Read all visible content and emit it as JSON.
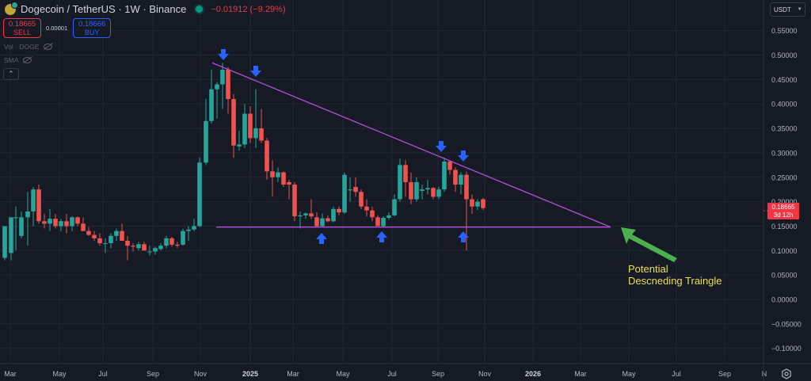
{
  "header": {
    "symbol_title": "Dogecoin / TetherUS · 1W · Binance",
    "change": "−0.01912 (−9.29%)",
    "coin_icon": "dogecoin-icon",
    "live_icon": "market-open-dot"
  },
  "trade": {
    "sell_price": "0.18665",
    "sell_label": "SELL",
    "spread": "0.00001",
    "buy_price": "0.18666",
    "buy_label": "BUY"
  },
  "indicators": [
    {
      "label": "Vol · DOGE",
      "icon": "eye-off-icon"
    },
    {
      "label": "SMA",
      "icon": "eye-off-icon"
    }
  ],
  "collapse_icon": "chevron-up-icon",
  "price_axis": {
    "currency": "USDT",
    "ticks": [
      "0.55000",
      "0.50000",
      "0.45000",
      "0.40000",
      "0.35000",
      "0.30000",
      "0.25000",
      "0.20000",
      "0.15000",
      "0.10000",
      "0.05000",
      "0.00000",
      "−0.05000",
      "−0.10000"
    ],
    "current_price": "0.18665",
    "countdown": "3d 12h"
  },
  "time_axis": {
    "ticks": [
      "Mar",
      "May",
      "Jul",
      "Sep",
      "Nov",
      "2025",
      "Mar",
      "May",
      "Jul",
      "Sep",
      "Nov",
      "2026",
      "Mar",
      "May",
      "Jul",
      "Sep",
      "N"
    ],
    "settings_icon": "gear-icon"
  },
  "annotation": {
    "line1": "Potential",
    "line2": "Descneding Traingle"
  },
  "colors": {
    "background": "#161a25",
    "grid": "#232734",
    "up": "#26a69a",
    "down": "#ef5350",
    "trendline": "#b44ed8",
    "marker_arrow": "#2962ff",
    "annotation_arrow": "#4caf50",
    "annotation_text": "#e8e052"
  },
  "chart_data": {
    "type": "candlestick",
    "title": "Dogecoin / TetherUS · 1W · Binance",
    "xlabel": "",
    "ylabel": "USDT",
    "ylim": [
      -0.11,
      0.57
    ],
    "grid": true,
    "timeframe": "1W",
    "last_price": 0.18665,
    "change": -0.01912,
    "change_pct": -9.29,
    "candles": [
      {
        "x": 6,
        "o": 0.085,
        "h": 0.15,
        "l": 0.08,
        "c": 0.15
      },
      {
        "x": 14,
        "o": 0.095,
        "h": 0.168,
        "l": 0.08,
        "c": 0.168
      },
      {
        "x": 20,
        "o": 0.168,
        "h": 0.19,
        "l": 0.1,
        "c": 0.168
      },
      {
        "x": 27,
        "o": 0.13,
        "h": 0.18,
        "l": 0.125,
        "c": 0.168
      },
      {
        "x": 35,
        "o": 0.168,
        "h": 0.22,
        "l": 0.11,
        "c": 0.18
      },
      {
        "x": 42,
        "o": 0.18,
        "h": 0.23,
        "l": 0.15,
        "c": 0.225
      },
      {
        "x": 49,
        "o": 0.225,
        "h": 0.235,
        "l": 0.155,
        "c": 0.16
      },
      {
        "x": 56,
        "o": 0.16,
        "h": 0.175,
        "l": 0.145,
        "c": 0.155
      },
      {
        "x": 63,
        "o": 0.155,
        "h": 0.185,
        "l": 0.14,
        "c": 0.165
      },
      {
        "x": 70,
        "o": 0.165,
        "h": 0.175,
        "l": 0.145,
        "c": 0.15
      },
      {
        "x": 77,
        "o": 0.15,
        "h": 0.165,
        "l": 0.14,
        "c": 0.16
      },
      {
        "x": 84,
        "o": 0.16,
        "h": 0.175,
        "l": 0.135,
        "c": 0.15
      },
      {
        "x": 91,
        "o": 0.15,
        "h": 0.17,
        "l": 0.14,
        "c": 0.168
      },
      {
        "x": 98,
        "o": 0.168,
        "h": 0.17,
        "l": 0.15,
        "c": 0.155
      },
      {
        "x": 105,
        "o": 0.155,
        "h": 0.168,
        "l": 0.14,
        "c": 0.14
      },
      {
        "x": 112,
        "o": 0.14,
        "h": 0.148,
        "l": 0.13,
        "c": 0.132
      },
      {
        "x": 119,
        "o": 0.132,
        "h": 0.14,
        "l": 0.12,
        "c": 0.125
      },
      {
        "x": 126,
        "o": 0.125,
        "h": 0.135,
        "l": 0.11,
        "c": 0.115
      },
      {
        "x": 133,
        "o": 0.115,
        "h": 0.125,
        "l": 0.095,
        "c": 0.115
      },
      {
        "x": 140,
        "o": 0.115,
        "h": 0.135,
        "l": 0.105,
        "c": 0.13
      },
      {
        "x": 147,
        "o": 0.13,
        "h": 0.145,
        "l": 0.12,
        "c": 0.14
      },
      {
        "x": 154,
        "o": 0.14,
        "h": 0.155,
        "l": 0.12,
        "c": 0.12
      },
      {
        "x": 161,
        "o": 0.12,
        "h": 0.13,
        "l": 0.08,
        "c": 0.11
      },
      {
        "x": 168,
        "o": 0.11,
        "h": 0.115,
        "l": 0.098,
        "c": 0.108
      },
      {
        "x": 175,
        "o": 0.105,
        "h": 0.118,
        "l": 0.1,
        "c": 0.113
      },
      {
        "x": 182,
        "o": 0.113,
        "h": 0.118,
        "l": 0.1,
        "c": 0.1
      },
      {
        "x": 189,
        "o": 0.098,
        "h": 0.11,
        "l": 0.09,
        "c": 0.098
      },
      {
        "x": 196,
        "o": 0.098,
        "h": 0.108,
        "l": 0.092,
        "c": 0.105
      },
      {
        "x": 203,
        "o": 0.103,
        "h": 0.115,
        "l": 0.1,
        "c": 0.11
      },
      {
        "x": 210,
        "o": 0.11,
        "h": 0.13,
        "l": 0.105,
        "c": 0.125
      },
      {
        "x": 217,
        "o": 0.125,
        "h": 0.128,
        "l": 0.108,
        "c": 0.112
      },
      {
        "x": 224,
        "o": 0.112,
        "h": 0.118,
        "l": 0.105,
        "c": 0.11
      },
      {
        "x": 231,
        "o": 0.112,
        "h": 0.145,
        "l": 0.11,
        "c": 0.14
      },
      {
        "x": 238,
        "o": 0.14,
        "h": 0.15,
        "l": 0.12,
        "c": 0.143
      },
      {
        "x": 245,
        "o": 0.143,
        "h": 0.165,
        "l": 0.14,
        "c": 0.15
      },
      {
        "x": 252,
        "o": 0.15,
        "h": 0.29,
        "l": 0.148,
        "c": 0.28
      },
      {
        "x": 260,
        "o": 0.28,
        "h": 0.41,
        "l": 0.275,
        "c": 0.365
      },
      {
        "x": 267,
        "o": 0.365,
        "h": 0.47,
        "l": 0.36,
        "c": 0.43
      },
      {
        "x": 274,
        "o": 0.43,
        "h": 0.445,
        "l": 0.37,
        "c": 0.44
      },
      {
        "x": 281,
        "o": 0.44,
        "h": 0.484,
        "l": 0.39,
        "c": 0.47
      },
      {
        "x": 288,
        "o": 0.47,
        "h": 0.475,
        "l": 0.38,
        "c": 0.41
      },
      {
        "x": 295,
        "o": 0.41,
        "h": 0.42,
        "l": 0.29,
        "c": 0.315
      },
      {
        "x": 302,
        "o": 0.313,
        "h": 0.345,
        "l": 0.305,
        "c": 0.317
      },
      {
        "x": 309,
        "o": 0.317,
        "h": 0.4,
        "l": 0.31,
        "c": 0.38
      },
      {
        "x": 316,
        "o": 0.38,
        "h": 0.395,
        "l": 0.32,
        "c": 0.33
      },
      {
        "x": 323,
        "o": 0.33,
        "h": 0.43,
        "l": 0.31,
        "c": 0.35
      },
      {
        "x": 330,
        "o": 0.35,
        "h": 0.39,
        "l": 0.32,
        "c": 0.325
      },
      {
        "x": 337,
        "o": 0.325,
        "h": 0.33,
        "l": 0.245,
        "c": 0.262
      },
      {
        "x": 344,
        "o": 0.262,
        "h": 0.285,
        "l": 0.21,
        "c": 0.25
      },
      {
        "x": 351,
        "o": 0.25,
        "h": 0.27,
        "l": 0.24,
        "c": 0.26
      },
      {
        "x": 358,
        "o": 0.26,
        "h": 0.262,
        "l": 0.23,
        "c": 0.235
      },
      {
        "x": 365,
        "o": 0.24,
        "h": 0.245,
        "l": 0.205,
        "c": 0.235
      },
      {
        "x": 372,
        "o": 0.235,
        "h": 0.24,
        "l": 0.16,
        "c": 0.17
      },
      {
        "x": 379,
        "o": 0.17,
        "h": 0.18,
        "l": 0.145,
        "c": 0.172
      },
      {
        "x": 386,
        "o": 0.172,
        "h": 0.178,
        "l": 0.165,
        "c": 0.176
      },
      {
        "x": 393,
        "o": 0.176,
        "h": 0.205,
        "l": 0.165,
        "c": 0.17
      },
      {
        "x": 400,
        "o": 0.168,
        "h": 0.178,
        "l": 0.148,
        "c": 0.15
      },
      {
        "x": 407,
        "o": 0.15,
        "h": 0.176,
        "l": 0.148,
        "c": 0.166
      },
      {
        "x": 414,
        "o": 0.166,
        "h": 0.172,
        "l": 0.158,
        "c": 0.16
      },
      {
        "x": 421,
        "o": 0.16,
        "h": 0.19,
        "l": 0.158,
        "c": 0.185
      },
      {
        "x": 428,
        "o": 0.185,
        "h": 0.19,
        "l": 0.172,
        "c": 0.178
      },
      {
        "x": 435,
        "o": 0.178,
        "h": 0.26,
        "l": 0.175,
        "c": 0.255
      },
      {
        "x": 442,
        "o": 0.223,
        "h": 0.25,
        "l": 0.2,
        "c": 0.225
      },
      {
        "x": 449,
        "o": 0.23,
        "h": 0.25,
        "l": 0.21,
        "c": 0.22
      },
      {
        "x": 456,
        "o": 0.22,
        "h": 0.225,
        "l": 0.185,
        "c": 0.19
      },
      {
        "x": 463,
        "o": 0.19,
        "h": 0.205,
        "l": 0.17,
        "c": 0.182
      },
      {
        "x": 470,
        "o": 0.182,
        "h": 0.19,
        "l": 0.16,
        "c": 0.168
      },
      {
        "x": 477,
        "o": 0.168,
        "h": 0.172,
        "l": 0.15,
        "c": 0.15
      },
      {
        "x": 484,
        "o": 0.15,
        "h": 0.17,
        "l": 0.148,
        "c": 0.167
      },
      {
        "x": 491,
        "o": 0.167,
        "h": 0.178,
        "l": 0.163,
        "c": 0.172
      },
      {
        "x": 498,
        "o": 0.172,
        "h": 0.215,
        "l": 0.17,
        "c": 0.205
      },
      {
        "x": 505,
        "o": 0.205,
        "h": 0.288,
        "l": 0.2,
        "c": 0.275
      },
      {
        "x": 512,
        "o": 0.275,
        "h": 0.285,
        "l": 0.21,
        "c": 0.24
      },
      {
        "x": 519,
        "o": 0.24,
        "h": 0.26,
        "l": 0.195,
        "c": 0.205
      },
      {
        "x": 526,
        "o": 0.205,
        "h": 0.25,
        "l": 0.2,
        "c": 0.24
      },
      {
        "x": 533,
        "o": 0.222,
        "h": 0.235,
        "l": 0.205,
        "c": 0.225
      },
      {
        "x": 540,
        "o": 0.225,
        "h": 0.245,
        "l": 0.215,
        "c": 0.228
      },
      {
        "x": 547,
        "o": 0.228,
        "h": 0.23,
        "l": 0.205,
        "c": 0.21
      },
      {
        "x": 554,
        "o": 0.21,
        "h": 0.23,
        "l": 0.205,
        "c": 0.225
      },
      {
        "x": 561,
        "o": 0.225,
        "h": 0.29,
        "l": 0.22,
        "c": 0.282
      },
      {
        "x": 568,
        "o": 0.282,
        "h": 0.285,
        "l": 0.255,
        "c": 0.265
      },
      {
        "x": 575,
        "o": 0.265,
        "h": 0.27,
        "l": 0.22,
        "c": 0.235
      },
      {
        "x": 582,
        "o": 0.235,
        "h": 0.26,
        "l": 0.215,
        "c": 0.255
      },
      {
        "x": 589,
        "o": 0.255,
        "h": 0.262,
        "l": 0.1,
        "c": 0.205
      },
      {
        "x": 596,
        "o": 0.205,
        "h": 0.215,
        "l": 0.175,
        "c": 0.19
      },
      {
        "x": 603,
        "o": 0.19,
        "h": 0.205,
        "l": 0.183,
        "c": 0.2
      },
      {
        "x": 610,
        "o": 0.205,
        "h": 0.207,
        "l": 0.183,
        "c": 0.187
      }
    ],
    "annotations": {
      "descending_resistance": {
        "from": [
          268,
          0.484
        ],
        "to": [
          771,
          0.148
        ]
      },
      "horizontal_support": {
        "from": [
          273,
          0.148
        ],
        "to": [
          771,
          0.148
        ]
      },
      "lower_high_markers_x": [
        282,
        323,
        557,
        585
      ],
      "support_touch_markers_x": [
        406,
        482,
        585
      ],
      "label": "Potential Descneding Traingle"
    }
  }
}
